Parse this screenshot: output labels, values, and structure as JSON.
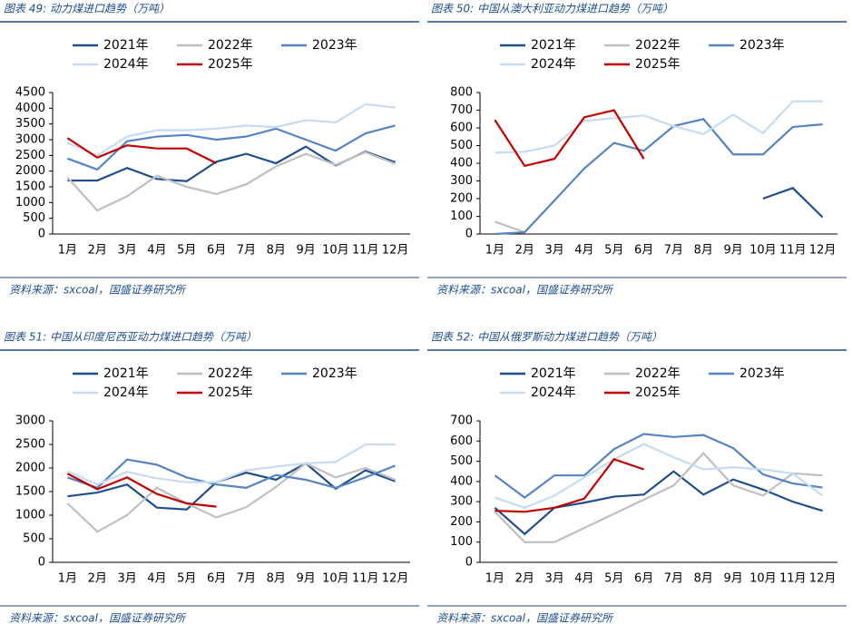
{
  "chart_data": [
    {
      "type": "line",
      "title": "图表 49:  动力煤进口趋势（万吨）",
      "source": "资料来源：sxcoal，国盛证券研究所",
      "categories": [
        "1月",
        "2月",
        "3月",
        "4月",
        "5月",
        "6月",
        "7月",
        "8月",
        "9月",
        "10月",
        "11月",
        "12月"
      ],
      "ylim": [
        0,
        4500
      ],
      "yticks": [
        0,
        500,
        1000,
        1500,
        2000,
        2500,
        3000,
        3500,
        4000,
        4500
      ],
      "series": [
        {
          "name": "2021年",
          "color": "#1f4e8c",
          "values": [
            1700,
            1700,
            2100,
            1750,
            1680,
            2300,
            2550,
            2250,
            2780,
            2180,
            2620,
            2280
          ]
        },
        {
          "name": "2022年",
          "color": "#bfbfbf",
          "values": [
            1800,
            750,
            1200,
            1850,
            1500,
            1270,
            1580,
            2150,
            2550,
            2200,
            2600,
            2230
          ]
        },
        {
          "name": "2023年",
          "color": "#5683c2",
          "values": [
            2400,
            2050,
            2950,
            3100,
            3150,
            3000,
            3100,
            3350,
            3000,
            2650,
            3200,
            3450
          ]
        },
        {
          "name": "2024年",
          "color": "#c5dcf0",
          "values": [
            2900,
            2500,
            3100,
            3300,
            3300,
            3350,
            3450,
            3400,
            3620,
            3550,
            4130,
            4020
          ]
        },
        {
          "name": "2025年",
          "color": "#c00000",
          "values": [
            3050,
            2430,
            2820,
            2720,
            2720,
            2250,
            null,
            null,
            null,
            null,
            null,
            null
          ]
        }
      ]
    },
    {
      "type": "line",
      "title": "图表 50:  中国从澳大利亚动力煤进口趋势（万吨）",
      "source": "资料来源：sxcoal，国盛证券研究所",
      "categories": [
        "1月",
        "2月",
        "3月",
        "4月",
        "5月",
        "6月",
        "7月",
        "8月",
        "9月",
        "10月",
        "11月",
        "12月"
      ],
      "ylim": [
        0,
        800
      ],
      "yticks": [
        0,
        100,
        200,
        300,
        400,
        500,
        600,
        700,
        800
      ],
      "series": [
        {
          "name": "2021年",
          "color": "#1f4e8c",
          "values": [
            null,
            null,
            null,
            null,
            null,
            null,
            null,
            null,
            null,
            200,
            260,
            95
          ]
        },
        {
          "name": "2022年",
          "color": "#bfbfbf",
          "values": [
            70,
            10,
            null,
            null,
            null,
            null,
            null,
            null,
            null,
            null,
            null,
            null
          ]
        },
        {
          "name": "2023年",
          "color": "#5683c2",
          "values": [
            0,
            10,
            190,
            370,
            515,
            470,
            610,
            650,
            450,
            450,
            605,
            620
          ]
        },
        {
          "name": "2024年",
          "color": "#c5dcf0",
          "values": [
            460,
            465,
            500,
            640,
            655,
            670,
            610,
            565,
            675,
            570,
            750,
            750
          ]
        },
        {
          "name": "2025年",
          "color": "#c00000",
          "values": [
            645,
            385,
            425,
            660,
            700,
            425,
            null,
            null,
            null,
            null,
            null,
            null
          ]
        }
      ]
    },
    {
      "type": "line",
      "title": "图表 51:  中国从印度尼西亚动力煤进口趋势（万吨）",
      "source": "资料来源：sxcoal，国盛证券研究所",
      "categories": [
        "1月",
        "2月",
        "3月",
        "4月",
        "5月",
        "6月",
        "7月",
        "8月",
        "9月",
        "10月",
        "11月",
        "12月"
      ],
      "ylim": [
        0,
        3000
      ],
      "yticks": [
        0,
        500,
        1000,
        1500,
        2000,
        2500,
        3000
      ],
      "series": [
        {
          "name": "2021年",
          "color": "#1f4e8c",
          "values": [
            1400,
            1480,
            1650,
            1160,
            1120,
            1700,
            1900,
            1750,
            2100,
            1560,
            1950,
            1720
          ]
        },
        {
          "name": "2022年",
          "color": "#bfbfbf",
          "values": [
            1250,
            650,
            1000,
            1580,
            1250,
            950,
            1170,
            1600,
            2100,
            1800,
            2000,
            1750
          ]
        },
        {
          "name": "2023年",
          "color": "#5683c2",
          "values": [
            1800,
            1580,
            2180,
            2070,
            1800,
            1650,
            1580,
            1850,
            1750,
            1580,
            1800,
            2050
          ]
        },
        {
          "name": "2024年",
          "color": "#c5dcf0",
          "values": [
            1930,
            1650,
            1920,
            1780,
            1700,
            1700,
            1950,
            2030,
            2100,
            2130,
            2500,
            2500
          ]
        },
        {
          "name": "2025年",
          "color": "#c00000",
          "values": [
            1880,
            1550,
            1800,
            1450,
            1250,
            1180,
            null,
            null,
            null,
            null,
            null,
            null
          ]
        }
      ]
    },
    {
      "type": "line",
      "title": "图表 52:  中国从俄罗斯动力煤进口趋势（万吨）",
      "source": "资料来源：sxcoal，国盛证券研究所",
      "categories": [
        "1月",
        "2月",
        "3月",
        "4月",
        "5月",
        "6月",
        "7月",
        "8月",
        "9月",
        "10月",
        "11月",
        "12月"
      ],
      "ylim": [
        0,
        700
      ],
      "yticks": [
        0,
        100,
        200,
        300,
        400,
        500,
        600,
        700
      ],
      "series": [
        {
          "name": "2021年",
          "color": "#1f4e8c",
          "values": [
            270,
            140,
            270,
            295,
            325,
            335,
            450,
            335,
            410,
            360,
            300,
            255
          ]
        },
        {
          "name": "2022年",
          "color": "#bfbfbf",
          "values": [
            250,
            100,
            100,
            170,
            240,
            310,
            380,
            540,
            380,
            330,
            440,
            430
          ]
        },
        {
          "name": "2023年",
          "color": "#5683c2",
          "values": [
            430,
            320,
            430,
            430,
            560,
            635,
            620,
            630,
            565,
            435,
            390,
            370
          ]
        },
        {
          "name": "2024年",
          "color": "#c5dcf0",
          "values": [
            320,
            270,
            330,
            420,
            510,
            585,
            520,
            460,
            470,
            460,
            440,
            330
          ]
        },
        {
          "name": "2025年",
          "color": "#c00000",
          "values": [
            255,
            250,
            270,
            315,
            510,
            460,
            null,
            null,
            null,
            null,
            null,
            null
          ]
        }
      ]
    }
  ]
}
